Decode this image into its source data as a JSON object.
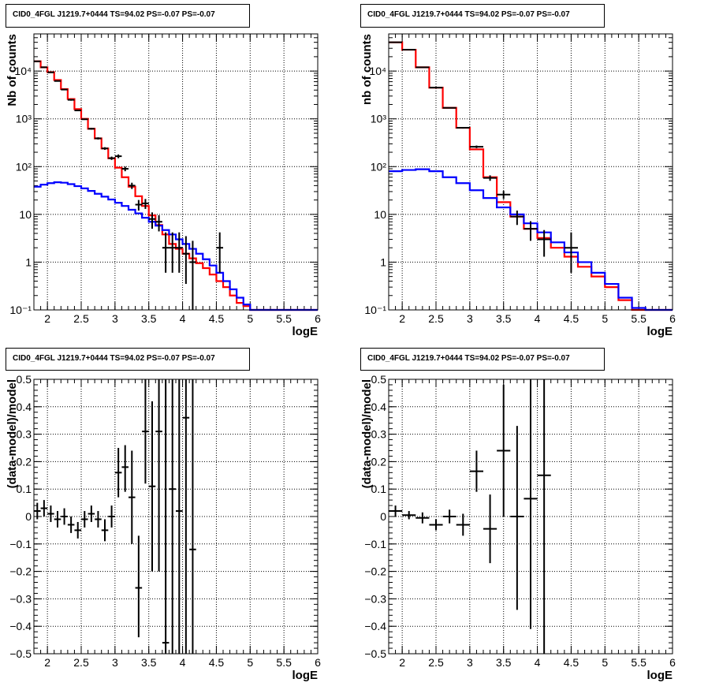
{
  "titles": {
    "counts_left": "CID0_4FGL J1219.7+0444 TS=94.02 PS=-0.07 PS=-0.07",
    "counts_right": "CID0_4FGL J1219.7+0444 TS=94.02 PS=-0.07 PS=-0.07",
    "resid_left": "CID0_4FGL J1219.7+0444 TS=94.02 PS=-0.07 PS=-0.07",
    "resid_right": "CID0_4FGL J1219.7+0444 TS=94.02 PS=-0.07 PS=-0.07"
  },
  "colors": {
    "total_model": "#ff0000",
    "background_model": "#0000ff",
    "data": "#000000"
  },
  "chart_data": [
    {
      "type": "line",
      "panel": "top-left",
      "xlabel": "logE",
      "ylabel": "Nb of counts",
      "xlim": [
        1.8,
        6.0
      ],
      "ylim": [
        0.1,
        60000
      ],
      "yscale": "log",
      "grid": true,
      "x_ticks": [
        2,
        2.5,
        3,
        3.5,
        4,
        4.5,
        5,
        5.5,
        6
      ],
      "x_tick_labels": [
        "2",
        "2.5",
        "3",
        "3.5",
        "4",
        "4.5",
        "5",
        "5.5",
        "6"
      ],
      "y_ticks": [
        0.1,
        1,
        10,
        100,
        1000,
        10000
      ],
      "y_tick_labels": [
        "10⁻¹",
        "1",
        "10",
        "10²",
        "10³",
        "10⁴"
      ],
      "bin_edges": [
        1.8,
        1.9,
        2.0,
        2.1,
        2.2,
        2.3,
        2.4,
        2.5,
        2.6,
        2.7,
        2.8,
        2.9,
        3.0,
        3.1,
        3.2,
        3.3,
        3.4,
        3.5,
        3.6,
        3.7,
        3.8,
        3.9,
        4.0,
        4.1,
        4.2,
        4.3,
        4.4,
        4.5,
        4.6,
        4.7,
        4.8,
        4.9,
        5.0,
        5.1,
        5.2,
        5.3,
        5.4,
        5.5,
        5.6,
        5.7,
        5.8,
        5.9,
        6.0
      ],
      "series": [
        {
          "color": "#ff0000",
          "step": true,
          "values": [
            16000,
            12000,
            9500,
            6500,
            4200,
            2600,
            1600,
            1000,
            620,
            390,
            240,
            150,
            95,
            60,
            38,
            24,
            15,
            9.5,
            6,
            3.8,
            2.4,
            1.9,
            1.5,
            1.2,
            0.95,
            0.75,
            0.55,
            0.4,
            0.3,
            0.2,
            0.14,
            0.12,
            0.1,
            0.1,
            0.1,
            0.1,
            0.1,
            0.1,
            0.1,
            0.1,
            0.1,
            0.1
          ]
        },
        {
          "color": "#0000ff",
          "step": true,
          "values": [
            38,
            42,
            45,
            47,
            46,
            43,
            39,
            35,
            31,
            27,
            23.5,
            20.5,
            17.5,
            15,
            12.5,
            10.5,
            8.5,
            7,
            5.8,
            4.7,
            3.8,
            3.0,
            2.4,
            1.9,
            1.5,
            1.15,
            0.85,
            0.6,
            0.4,
            0.27,
            0.18,
            0.13,
            0.1,
            0.1,
            0.1,
            0.1,
            0.1,
            0.1,
            0.1,
            0.1,
            0.1,
            0.1
          ]
        },
        {
          "color": "#000000",
          "type": "errorbar",
          "half_width": 0.05,
          "x": [
            1.85,
            1.95,
            2.05,
            2.15,
            2.25,
            2.35,
            2.45,
            2.55,
            2.65,
            2.75,
            2.85,
            2.95,
            3.05,
            3.15,
            3.25,
            3.35,
            3.45,
            3.55,
            3.65,
            3.75,
            3.85,
            3.95,
            4.05,
            4.15,
            4.55
          ],
          "y": [
            16000,
            12000,
            9400,
            6200,
            4100,
            2500,
            1500,
            980,
            620,
            390,
            240,
            150,
            165,
            90,
            40,
            16,
            17,
            8,
            7,
            2,
            2,
            2,
            1.5,
            1,
            2
          ],
          "ylow": [
            15800,
            11800,
            9200,
            6050,
            3980,
            2400,
            1460,
            950,
            595,
            370,
            225,
            138,
            150,
            80,
            34,
            12,
            13,
            5,
            4.4,
            0.6,
            0.6,
            0.6,
            0.35,
            0.1,
            0.6
          ],
          "yhigh": [
            16200,
            12200,
            9600,
            6350,
            4220,
            2600,
            1540,
            1010,
            645,
            410,
            255,
            162,
            180,
            100,
            46,
            20,
            21,
            11,
            9.6,
            4.2,
            4.2,
            4.2,
            3.5,
            2.8,
            4.2
          ]
        }
      ]
    },
    {
      "type": "line",
      "panel": "top-right",
      "xlabel": "logE",
      "ylabel": "nb of counts",
      "xlim": [
        1.8,
        6.0
      ],
      "ylim": [
        0.1,
        60000
      ],
      "yscale": "log",
      "grid": true,
      "x_ticks": [
        2,
        2.5,
        3,
        3.5,
        4,
        4.5,
        5,
        5.5,
        6
      ],
      "x_tick_labels": [
        "2",
        "2.5",
        "3",
        "3.5",
        "4",
        "4.5",
        "5",
        "5.5",
        "6"
      ],
      "y_ticks": [
        0.1,
        1,
        10,
        100,
        1000,
        10000
      ],
      "y_tick_labels": [
        "10⁻¹",
        "1",
        "10",
        "10²",
        "10³",
        "10⁴"
      ],
      "bin_edges": [
        1.8,
        2.0,
        2.2,
        2.4,
        2.6,
        2.8,
        3.0,
        3.2,
        3.4,
        3.6,
        3.8,
        4.0,
        4.2,
        4.4,
        4.6,
        4.8,
        5.0,
        5.2,
        5.4,
        5.6,
        5.8,
        6.0
      ],
      "series": [
        {
          "color": "#ff0000",
          "step": true,
          "values": [
            40000,
            28000,
            12000,
            4500,
            1700,
            650,
            230,
            60,
            18,
            9,
            5,
            3.2,
            2,
            1.3,
            0.8,
            0.5,
            0.3,
            0.16,
            0.1,
            0.1,
            0.1
          ]
        },
        {
          "color": "#0000ff",
          "step": true,
          "values": [
            80,
            85,
            88,
            80,
            60,
            45,
            32,
            22,
            14,
            10,
            6.5,
            4.2,
            2.6,
            1.6,
            1.0,
            0.6,
            0.35,
            0.18,
            0.11,
            0.1,
            0.1
          ]
        },
        {
          "color": "#000000",
          "type": "errorbar",
          "half_width": 0.1,
          "x": [
            1.9,
            2.1,
            2.3,
            2.5,
            2.7,
            2.9,
            3.1,
            3.3,
            3.5,
            3.7,
            3.9,
            4.1,
            4.5
          ],
          "y": [
            40000,
            28000,
            12000,
            4500,
            1700,
            650,
            260,
            58,
            26,
            9,
            5,
            3,
            2
          ],
          "ylow": [
            39800,
            27800,
            11890,
            4430,
            1660,
            625,
            244,
            50.4,
            21,
            6,
            2.8,
            1.3,
            0.6
          ],
          "yhigh": [
            40200,
            28200,
            12110,
            4570,
            1740,
            675,
            276,
            65.6,
            31,
            12,
            7.2,
            4.7,
            4.2
          ]
        }
      ]
    },
    {
      "type": "scatter",
      "panel": "bottom-left",
      "xlabel": "logE",
      "ylabel": "(data-model)/model",
      "xlim": [
        1.8,
        6.0
      ],
      "ylim": [
        -0.5,
        0.5
      ],
      "grid": true,
      "x_ticks": [
        2,
        2.5,
        3,
        3.5,
        4,
        4.5,
        5,
        5.5,
        6
      ],
      "x_tick_labels": [
        "2",
        "2.5",
        "3",
        "3.5",
        "4",
        "4.5",
        "5",
        "5.5",
        "6"
      ],
      "y_ticks": [
        -0.5,
        -0.4,
        -0.3,
        -0.2,
        -0.1,
        0,
        0.1,
        0.2,
        0.3,
        0.4,
        0.5
      ],
      "y_tick_labels": [
        "−0.5",
        "−0.4",
        "−0.3",
        "−0.2",
        "−0.1",
        "0",
        "0.1",
        "0.2",
        "0.3",
        "0.4",
        "0.5"
      ],
      "series": [
        {
          "color": "#000000",
          "type": "errorbar",
          "half_width": 0.05,
          "x": [
            1.85,
            1.95,
            2.05,
            2.15,
            2.25,
            2.35,
            2.45,
            2.55,
            2.65,
            2.75,
            2.85,
            2.95,
            3.05,
            3.15,
            3.25,
            3.35,
            3.45,
            3.55,
            3.65,
            3.75,
            3.85,
            3.95,
            4.05,
            4.15
          ],
          "y": [
            0.02,
            0.03,
            0.01,
            -0.01,
            0.0,
            -0.03,
            -0.05,
            -0.01,
            0.01,
            -0.01,
            -0.05,
            0.0,
            0.16,
            0.18,
            0.07,
            -0.26,
            0.31,
            0.11,
            0.31,
            -0.46,
            0.1,
            0.02,
            0.36,
            -0.12
          ],
          "ylow": [
            -0.01,
            0.0,
            -0.02,
            -0.04,
            -0.03,
            -0.06,
            -0.08,
            -0.04,
            -0.02,
            -0.04,
            -0.09,
            -0.04,
            0.07,
            0.09,
            -0.1,
            -0.44,
            0.12,
            -0.2,
            -0.2,
            -0.5,
            -0.5,
            -0.5,
            -0.5,
            -0.5
          ],
          "yhigh": [
            0.05,
            0.06,
            0.04,
            0.02,
            0.03,
            0.0,
            -0.02,
            0.02,
            0.04,
            0.02,
            -0.01,
            0.04,
            0.25,
            0.26,
            0.24,
            -0.07,
            0.5,
            0.42,
            0.5,
            0.5,
            0.5,
            0.5,
            0.5,
            0.5
          ]
        }
      ]
    },
    {
      "type": "scatter",
      "panel": "bottom-right",
      "xlabel": "logE",
      "ylabel": "(data-model)/model",
      "xlim": [
        1.8,
        6.0
      ],
      "ylim": [
        -0.5,
        0.5
      ],
      "grid": true,
      "x_ticks": [
        2,
        2.5,
        3,
        3.5,
        4,
        4.5,
        5,
        5.5,
        6
      ],
      "x_tick_labels": [
        "2",
        "2.5",
        "3",
        "3.5",
        "4",
        "4.5",
        "5",
        "5.5",
        "6"
      ],
      "y_ticks": [
        -0.5,
        -0.4,
        -0.3,
        -0.2,
        -0.1,
        0,
        0.1,
        0.2,
        0.3,
        0.4,
        0.5
      ],
      "y_tick_labels": [
        "−0.5",
        "−0.4",
        "−0.3",
        "−0.2",
        "−0.1",
        "0",
        "0.1",
        "0.2",
        "0.3",
        "0.4",
        "0.5"
      ],
      "series": [
        {
          "color": "#000000",
          "type": "errorbar",
          "half_width": 0.1,
          "x": [
            1.9,
            2.1,
            2.3,
            2.5,
            2.7,
            2.9,
            3.1,
            3.3,
            3.5,
            3.7,
            3.9,
            4.1
          ],
          "y": [
            0.02,
            0.005,
            -0.005,
            -0.03,
            0.0,
            -0.03,
            0.165,
            -0.045,
            0.24,
            0.0,
            0.065,
            0.15
          ],
          "ylow": [
            0.0,
            -0.01,
            -0.025,
            -0.05,
            -0.025,
            -0.07,
            0.09,
            -0.17,
            0.0,
            -0.34,
            -0.41,
            -0.5
          ],
          "yhigh": [
            0.04,
            0.02,
            0.015,
            -0.01,
            0.025,
            0.01,
            0.24,
            0.08,
            0.48,
            0.33,
            0.5,
            0.5
          ]
        }
      ]
    }
  ]
}
